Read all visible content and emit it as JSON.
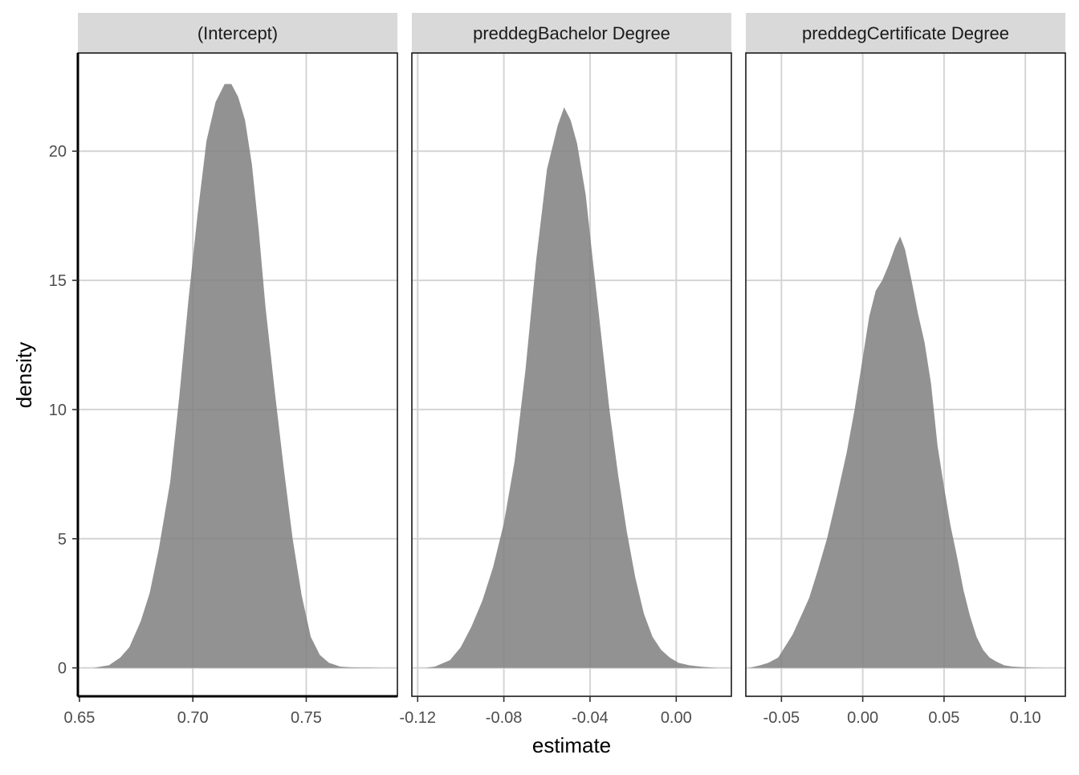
{
  "chart_data": {
    "type": "area",
    "xlabel": "estimate",
    "ylabel": "density",
    "ylim": [
      -1.1,
      23.8
    ],
    "y_ticks": [
      0,
      5,
      10,
      15,
      20
    ],
    "y_tick_labels": [
      "0",
      "5",
      "10",
      "15",
      "20"
    ],
    "grid": true,
    "fill_color": "#7f7f7f",
    "fill_opacity": 0.85,
    "strip_bg": "#d9d9d9",
    "gridline_color": "#d4d4d4",
    "panels": [
      {
        "name": "(Intercept)",
        "xlim": [
          0.6493,
          0.7902
        ],
        "x_ticks": [
          0.65,
          0.7,
          0.75
        ],
        "x_tick_labels": [
          "0.65",
          "0.70",
          "0.75"
        ],
        "x": [
          0.656,
          0.663,
          0.668,
          0.672,
          0.677,
          0.681,
          0.685,
          0.69,
          0.694,
          0.698,
          0.702,
          0.706,
          0.71,
          0.714,
          0.717,
          0.72,
          0.723,
          0.726,
          0.729,
          0.732,
          0.736,
          0.74,
          0.744,
          0.748,
          0.752,
          0.756,
          0.76,
          0.765,
          0.77,
          0.775,
          0.778,
          0.783
        ],
        "density": [
          0.0,
          0.1,
          0.4,
          0.8,
          1.8,
          2.9,
          4.6,
          7.2,
          10.5,
          14.2,
          17.5,
          20.4,
          21.9,
          22.6,
          22.6,
          22.1,
          21.2,
          19.5,
          17.0,
          14.0,
          10.8,
          7.8,
          5.0,
          2.8,
          1.2,
          0.5,
          0.2,
          0.05,
          0.02,
          0.01,
          0.01,
          0.0
        ]
      },
      {
        "name": "preddegBachelor Degree",
        "xlim": [
          -0.1227,
          0.0256
        ],
        "x_ticks": [
          -0.12,
          -0.08,
          -0.04,
          0.0
        ],
        "x_tick_labels": [
          "-0.12",
          "-0.08",
          "-0.04",
          "0.00"
        ],
        "x": [
          -0.1165,
          -0.112,
          -0.105,
          -0.1,
          -0.095,
          -0.09,
          -0.085,
          -0.08,
          -0.075,
          -0.07,
          -0.065,
          -0.06,
          -0.055,
          -0.052,
          -0.049,
          -0.046,
          -0.042,
          -0.039,
          -0.035,
          -0.031,
          -0.027,
          -0.023,
          -0.019,
          -0.015,
          -0.011,
          -0.007,
          -0.003,
          0.001,
          0.006,
          0.012,
          0.019
        ],
        "density": [
          0.0,
          0.05,
          0.3,
          0.8,
          1.6,
          2.6,
          3.9,
          5.6,
          8.0,
          11.5,
          15.8,
          19.3,
          21.0,
          21.7,
          21.2,
          20.3,
          18.3,
          16.0,
          13.0,
          10.0,
          7.5,
          5.3,
          3.5,
          2.1,
          1.2,
          0.7,
          0.4,
          0.2,
          0.1,
          0.04,
          0.0
        ]
      },
      {
        "name": "preddegCertificate Degree",
        "xlim": [
          -0.0719,
          0.1246
        ],
        "x_ticks": [
          -0.05,
          0.0,
          0.05,
          0.1
        ],
        "x_tick_labels": [
          "-0.05",
          "0.00",
          "0.05",
          "0.10"
        ],
        "x": [
          -0.07,
          -0.063,
          -0.058,
          -0.052,
          -0.048,
          -0.043,
          -0.038,
          -0.033,
          -0.028,
          -0.022,
          -0.016,
          -0.01,
          -0.005,
          0.0,
          0.004,
          0.008,
          0.012,
          0.016,
          0.02,
          0.023,
          0.026,
          0.03,
          0.034,
          0.038,
          0.042,
          0.046,
          0.05,
          0.054,
          0.058,
          0.062,
          0.066,
          0.07,
          0.074,
          0.078,
          0.082,
          0.087,
          0.092,
          0.1,
          0.112
        ],
        "density": [
          0.0,
          0.1,
          0.2,
          0.4,
          0.8,
          1.3,
          2.0,
          2.7,
          3.7,
          5.0,
          6.6,
          8.3,
          10.0,
          12.0,
          13.6,
          14.6,
          15.0,
          15.6,
          16.3,
          16.7,
          16.2,
          15.0,
          13.7,
          12.6,
          11.0,
          8.6,
          7.0,
          5.5,
          4.3,
          3.0,
          2.0,
          1.2,
          0.7,
          0.4,
          0.25,
          0.1,
          0.05,
          0.02,
          0.0
        ]
      }
    ]
  }
}
